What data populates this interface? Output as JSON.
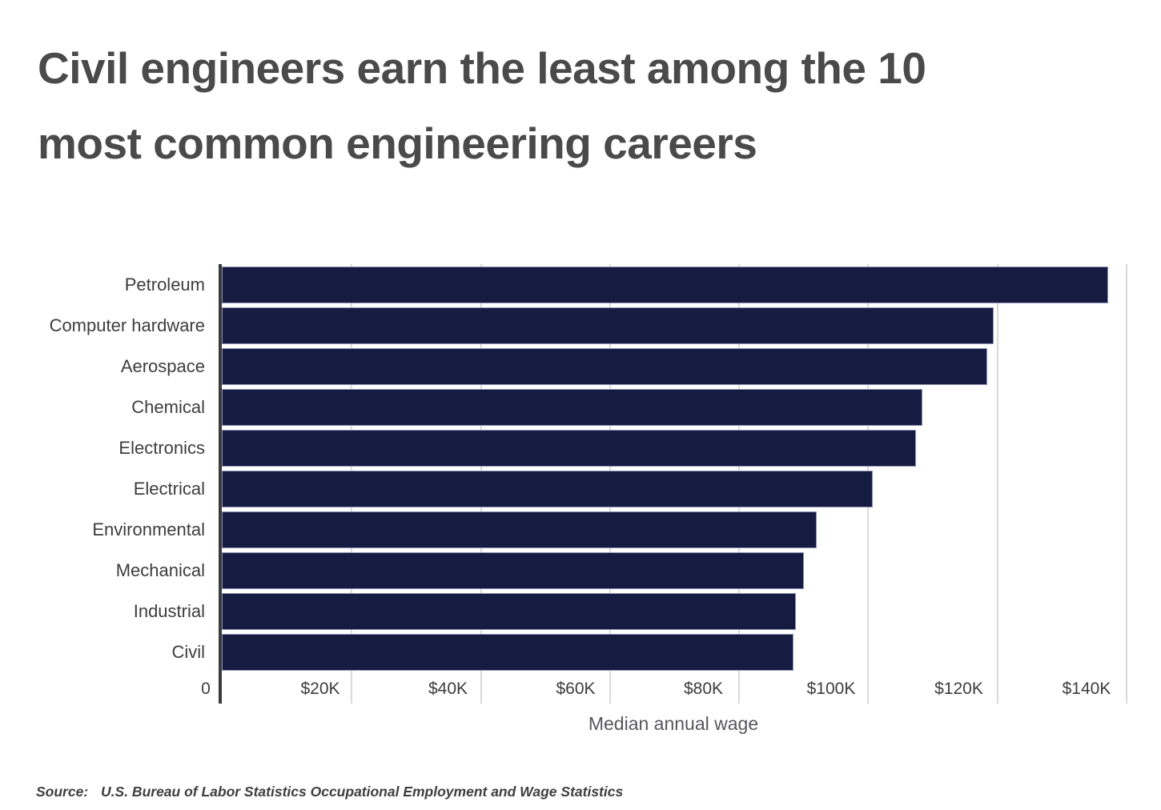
{
  "header": {
    "title_line1": "Civil engineers earn the least among the 10",
    "title_line2": "most common engineering careers"
  },
  "chart_data": {
    "type": "bar",
    "orientation": "horizontal",
    "title": "Civil engineers earn the least among the 10 most common engineering careers",
    "categories": [
      "Petroleum",
      "Computer hardware",
      "Aerospace",
      "Chemical",
      "Electronics",
      "Electrical",
      "Environmental",
      "Mechanical",
      "Industrial",
      "Civil"
    ],
    "values": [
      137330,
      119560,
      118610,
      108540,
      107540,
      100830,
      92120,
      90160,
      88950,
      88570
    ],
    "values_unit": "USD per year",
    "xlabel": "Median annual wage",
    "ylabel": "",
    "xlim": [
      0,
      145000
    ],
    "x_ticks": [
      0,
      20000,
      40000,
      60000,
      80000,
      100000,
      120000,
      140000
    ],
    "x_tick_labels": [
      "0",
      "$20K",
      "$40K",
      "$60K",
      "$80K",
      "$100K",
      "$120K",
      "$140K"
    ],
    "grid": "vertical-light",
    "legend": "none",
    "bar_color": "#161B42"
  },
  "source": {
    "prefix": "Source:",
    "text": "U.S. Bureau of Labor Statistics Occupational Employment and Wage Statistics"
  },
  "colors": {
    "background": "#FFFFFF",
    "bar_fill": "#161B42",
    "bar_border": "#8E92B2",
    "axis_line": "#3A3A3A",
    "gridline": "#D9D9D9",
    "title_text": "#4A4A4A",
    "label_text": "#3D3D3D",
    "axis_title_text": "#57575A",
    "source_text": "#3E3E3E"
  }
}
